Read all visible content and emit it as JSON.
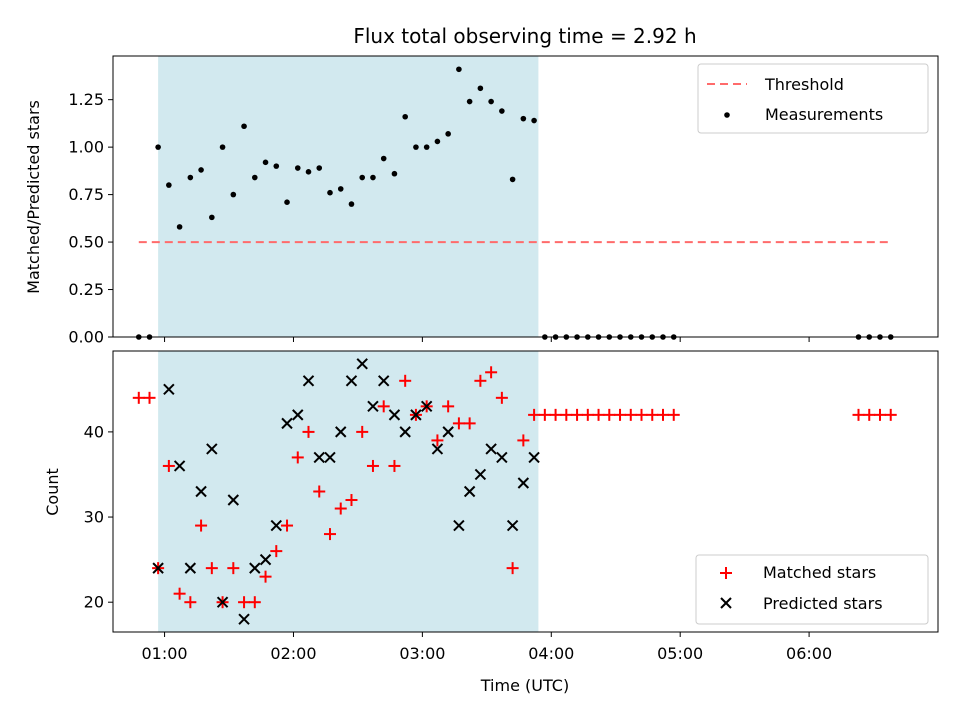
{
  "chart_data": [
    {
      "type": "scatter",
      "title": "Flux total observing time = 2.92 h",
      "xlabel": "",
      "ylabel": "Matched/Predicted stars",
      "xlim": [
        "00:36",
        "07:00"
      ],
      "ylim": [
        0,
        1.48
      ],
      "yticks": [
        "0.00",
        "0.25",
        "0.50",
        "0.75",
        "1.00",
        "1.25"
      ],
      "highlight_span": {
        "x0": "00:57",
        "x1": "03:54",
        "color": "#d2e9ef"
      },
      "threshold": {
        "name": "Threshold",
        "y": 0.5,
        "x0": "00:48",
        "x1": "06:38",
        "color": "#ff6b6b"
      },
      "legend_position": "top-right",
      "series": [
        {
          "name": "Measurements",
          "color": "#000000",
          "marker": "dot",
          "points": [
            [
              "00:48",
              0.0
            ],
            [
              "00:53",
              0.0
            ],
            [
              "00:57",
              1.0
            ],
            [
              "01:02",
              0.8
            ],
            [
              "01:07",
              0.58
            ],
            [
              "01:12",
              0.84
            ],
            [
              "01:17",
              0.88
            ],
            [
              "01:22",
              0.63
            ],
            [
              "01:27",
              1.0
            ],
            [
              "01:32",
              0.75
            ],
            [
              "01:37",
              1.11
            ],
            [
              "01:42",
              0.84
            ],
            [
              "01:47",
              0.92
            ],
            [
              "01:52",
              0.9
            ],
            [
              "01:57",
              0.71
            ],
            [
              "02:02",
              0.89
            ],
            [
              "02:07",
              0.87
            ],
            [
              "02:12",
              0.89
            ],
            [
              "02:17",
              0.76
            ],
            [
              "02:22",
              0.78
            ],
            [
              "02:27",
              0.7
            ],
            [
              "02:32",
              0.84
            ],
            [
              "02:37",
              0.84
            ],
            [
              "02:42",
              0.94
            ],
            [
              "02:47",
              0.86
            ],
            [
              "02:52",
              1.16
            ],
            [
              "02:57",
              1.0
            ],
            [
              "03:02",
              1.0
            ],
            [
              "03:07",
              1.03
            ],
            [
              "03:12",
              1.07
            ],
            [
              "03:17",
              1.41
            ],
            [
              "03:22",
              1.24
            ],
            [
              "03:27",
              1.31
            ],
            [
              "03:32",
              1.24
            ],
            [
              "03:37",
              1.19
            ],
            [
              "03:42",
              0.83
            ],
            [
              "03:47",
              1.15
            ],
            [
              "03:52",
              1.14
            ],
            [
              "03:57",
              0.0
            ],
            [
              "04:02",
              0.0
            ],
            [
              "04:07",
              0.0
            ],
            [
              "04:12",
              0.0
            ],
            [
              "04:17",
              0.0
            ],
            [
              "04:22",
              0.0
            ],
            [
              "04:27",
              0.0
            ],
            [
              "04:32",
              0.0
            ],
            [
              "04:37",
              0.0
            ],
            [
              "04:42",
              0.0
            ],
            [
              "04:47",
              0.0
            ],
            [
              "04:52",
              0.0
            ],
            [
              "04:57",
              0.0
            ],
            [
              "06:23",
              0.0
            ],
            [
              "06:28",
              0.0
            ],
            [
              "06:33",
              0.0
            ],
            [
              "06:38",
              0.0
            ]
          ]
        }
      ]
    },
    {
      "type": "scatter",
      "title": "",
      "xlabel": "Time (UTC)",
      "ylabel": "Count",
      "xlim": [
        "00:36",
        "07:00"
      ],
      "ylim": [
        16.5,
        49.5
      ],
      "xticks": [
        "01:00",
        "02:00",
        "03:00",
        "04:00",
        "05:00",
        "06:00"
      ],
      "yticks": [
        "20",
        "30",
        "40"
      ],
      "highlight_span": {
        "x0": "00:57",
        "x1": "03:54",
        "color": "#d2e9ef"
      },
      "legend_position": "bottom-right",
      "series": [
        {
          "name": "Matched stars",
          "color": "#ff0000",
          "marker": "plus",
          "points": [
            [
              "00:48",
              44
            ],
            [
              "00:53",
              44
            ],
            [
              "00:57",
              24
            ],
            [
              "01:02",
              36
            ],
            [
              "01:07",
              21
            ],
            [
              "01:12",
              20
            ],
            [
              "01:17",
              29
            ],
            [
              "01:22",
              24
            ],
            [
              "01:27",
              20
            ],
            [
              "01:32",
              24
            ],
            [
              "01:37",
              20
            ],
            [
              "01:42",
              20
            ],
            [
              "01:47",
              23
            ],
            [
              "01:52",
              26
            ],
            [
              "01:57",
              29
            ],
            [
              "02:02",
              37
            ],
            [
              "02:07",
              40
            ],
            [
              "02:12",
              33
            ],
            [
              "02:17",
              28
            ],
            [
              "02:22",
              31
            ],
            [
              "02:27",
              32
            ],
            [
              "02:32",
              40
            ],
            [
              "02:37",
              36
            ],
            [
              "02:42",
              43
            ],
            [
              "02:47",
              36
            ],
            [
              "02:52",
              46
            ],
            [
              "02:57",
              42
            ],
            [
              "03:02",
              43
            ],
            [
              "03:07",
              39
            ],
            [
              "03:12",
              43
            ],
            [
              "03:17",
              41
            ],
            [
              "03:22",
              41
            ],
            [
              "03:27",
              46
            ],
            [
              "03:32",
              47
            ],
            [
              "03:37",
              44
            ],
            [
              "03:42",
              24
            ],
            [
              "03:47",
              39
            ],
            [
              "03:52",
              42
            ],
            [
              "03:57",
              42
            ],
            [
              "04:02",
              42
            ],
            [
              "04:07",
              42
            ],
            [
              "04:12",
              42
            ],
            [
              "04:17",
              42
            ],
            [
              "04:22",
              42
            ],
            [
              "04:27",
              42
            ],
            [
              "04:32",
              42
            ],
            [
              "04:37",
              42
            ],
            [
              "04:42",
              42
            ],
            [
              "04:47",
              42
            ],
            [
              "04:52",
              42
            ],
            [
              "04:57",
              42
            ],
            [
              "06:23",
              42
            ],
            [
              "06:28",
              42
            ],
            [
              "06:33",
              42
            ],
            [
              "06:38",
              42
            ]
          ]
        },
        {
          "name": "Predicted stars",
          "color": "#000000",
          "marker": "x",
          "points": [
            [
              "00:57",
              24
            ],
            [
              "01:02",
              45
            ],
            [
              "01:07",
              36
            ],
            [
              "01:12",
              24
            ],
            [
              "01:17",
              33
            ],
            [
              "01:22",
              38
            ],
            [
              "01:27",
              20
            ],
            [
              "01:32",
              32
            ],
            [
              "01:37",
              18
            ],
            [
              "01:42",
              24
            ],
            [
              "01:47",
              25
            ],
            [
              "01:52",
              29
            ],
            [
              "01:57",
              41
            ],
            [
              "02:02",
              42
            ],
            [
              "02:07",
              46
            ],
            [
              "02:12",
              37
            ],
            [
              "02:17",
              37
            ],
            [
              "02:22",
              40
            ],
            [
              "02:27",
              46
            ],
            [
              "02:32",
              48
            ],
            [
              "02:37",
              43
            ],
            [
              "02:42",
              46
            ],
            [
              "02:47",
              42
            ],
            [
              "02:52",
              40
            ],
            [
              "02:57",
              42
            ],
            [
              "03:02",
              43
            ],
            [
              "03:07",
              38
            ],
            [
              "03:12",
              40
            ],
            [
              "03:17",
              29
            ],
            [
              "03:22",
              33
            ],
            [
              "03:27",
              35
            ],
            [
              "03:32",
              38
            ],
            [
              "03:37",
              37
            ],
            [
              "03:42",
              29
            ],
            [
              "03:47",
              34
            ],
            [
              "03:52",
              37
            ]
          ]
        }
      ]
    }
  ]
}
